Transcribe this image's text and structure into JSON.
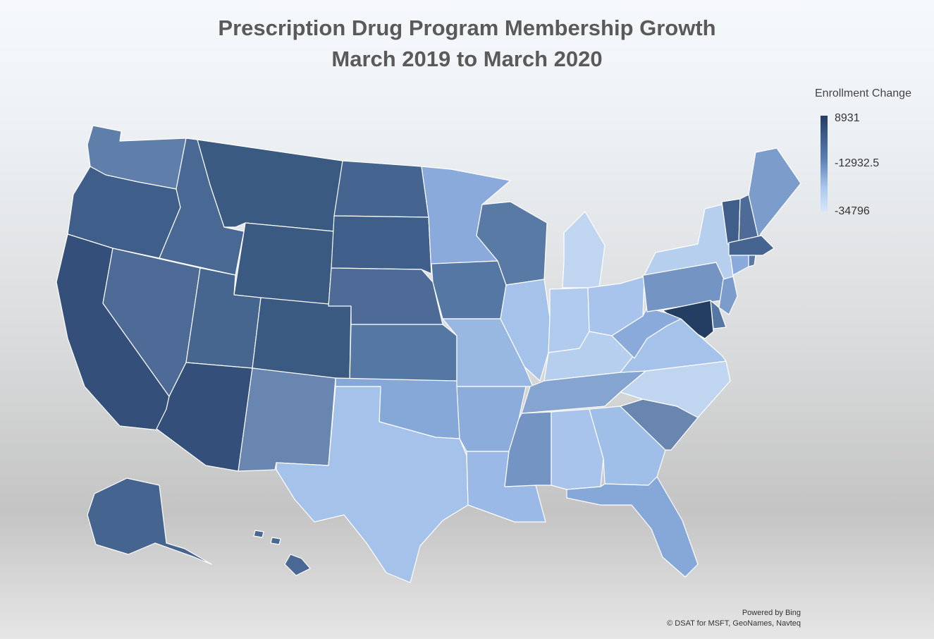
{
  "title": {
    "line1": "Prescription Drug Program Membership Growth",
    "line2": "March 2019 to March 2020"
  },
  "legend": {
    "title": "Enrollment Change",
    "max_label": "8931",
    "mid_label": "-12932.5",
    "min_label": "-34796",
    "colors": {
      "max": "#233d63",
      "mid": "#6a8fc6",
      "min": "#d6e6f8"
    }
  },
  "attribution": {
    "line1": "Powered by Bing",
    "line2": "© DSAT for MSFT, GeoNames, Navteq"
  },
  "map_data": {
    "type": "choropleth",
    "shading_levels": {
      "WA": "#5f7faa",
      "OR": "#3f5e8a",
      "CA": "#34507a",
      "NV": "#4d6b96",
      "ID": "#4a6894",
      "MT": "#3a5a82",
      "WY": "#3a5a82",
      "UT": "#46658f",
      "AZ": "#34507a",
      "CO": "#3a5a82",
      "NM": "#6886b0",
      "ND": "#45648f",
      "SD": "#3f5e8a",
      "NE": "#4d6b96",
      "KS": "#5577a3",
      "OK": "#86a8d8",
      "TX": "#a4c2ea",
      "MN": "#8aaadc",
      "IA": "#5577a3",
      "MO": "#98b8e2",
      "AR": "#8cacdc",
      "LA": "#9ab9e6",
      "WI": "#5a7aa6",
      "IL": "#a4c2ea",
      "MI": "#c0d6f0",
      "IN": "#b0cbee",
      "OH": "#a8c4ec",
      "KY": "#b7cfee",
      "TN": "#86a4d0",
      "MS": "#7494c4",
      "AL": "#a8c4ec",
      "GA": "#9fbee8",
      "FL": "#86a8d8",
      "SC": "#6886b0",
      "NC": "#c0d6f0",
      "VA": "#a4c2ea",
      "WV": "#8aaadc",
      "PA": "#7494c4",
      "NY": "#b7cfee",
      "VT": "#3f5e8a",
      "NH": "#4d6b96",
      "ME": "#7c9ccc",
      "MA": "#45648f",
      "CT": "#8aaadc",
      "RI": "#5a7aa6",
      "NJ": "#7c9ccc",
      "DE": "#5577a3",
      "MD": "#233d63",
      "AK": "#45648f",
      "HI": "#4a6894"
    }
  }
}
